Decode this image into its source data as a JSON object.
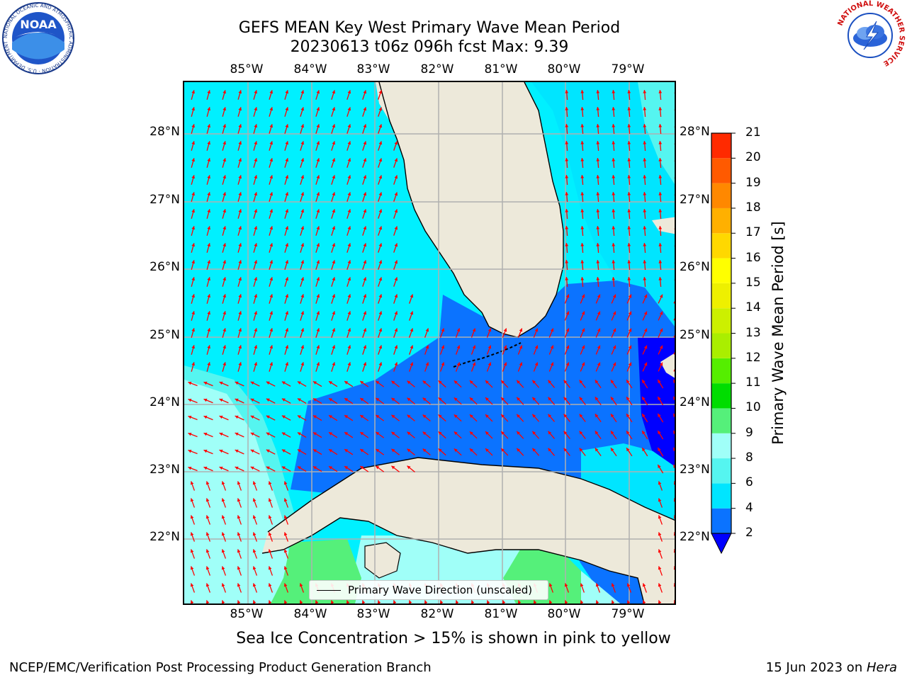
{
  "title": {
    "line1": "GEFS MEAN Key West Primary Wave Mean Period",
    "line2": "20230613 t06z 096h fcst   Max: 9.39"
  },
  "map": {
    "lon_labels": [
      "85°W",
      "84°W",
      "83°W",
      "82°W",
      "81°W",
      "80°W",
      "79°W"
    ],
    "lat_labels": [
      "28°N",
      "27°N",
      "26°N",
      "25°N",
      "24°N",
      "23°N",
      "22°N"
    ],
    "legend_label": "Primary Wave Direction (unscaled)",
    "land_color": "#ede9da",
    "arrow_color": "#ff0000"
  },
  "colorbar": {
    "label": "Primary Wave Mean Period [s]",
    "ticks": [
      "2",
      "4",
      "6",
      "8",
      "9",
      "10",
      "11",
      "12",
      "13",
      "14",
      "15",
      "16",
      "17",
      "18",
      "19",
      "20",
      "21"
    ],
    "colors": [
      "#0b73ff",
      "#00e5ff",
      "#55f5f0",
      "#a0fff8",
      "#55f07a",
      "#00dd00",
      "#55ee00",
      "#aaee00",
      "#ccf000",
      "#eef000",
      "#ffff00",
      "#ffd800",
      "#ffb000",
      "#ff8800",
      "#ff5a00",
      "#ff2a00"
    ],
    "under_color": "#0000ff"
  },
  "note": "Sea Ice Concentration > 15% is shown in pink to yellow",
  "footer": {
    "left": "NCEP/EMC/Verification Post Processing Product Generation Branch",
    "right_date": "15 Jun 2023 on ",
    "right_machine": "Hera"
  },
  "logos": {
    "noaa_text": "NOAA",
    "noaa_ring": "NATIONAL OCEANIC AND ATMOSPHERIC ADMINISTRATION · U.S. DEPARTMENT OF COMMERCE",
    "nws_ring": "NATIONAL WEATHER SERVICE"
  }
}
